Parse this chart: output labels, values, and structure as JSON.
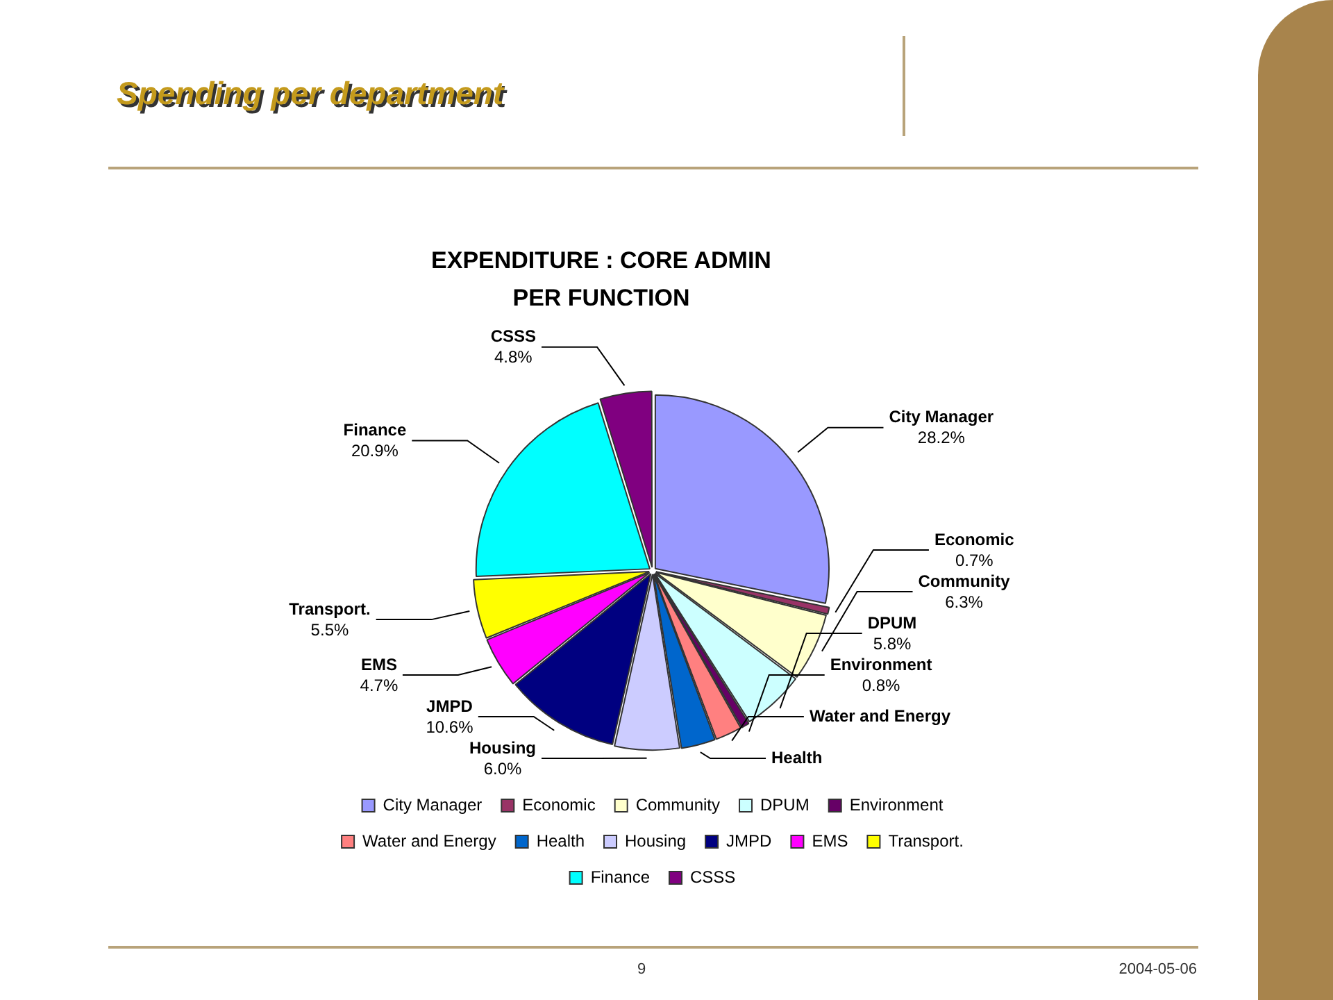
{
  "chart_data": {
    "type": "pie",
    "title": "Spending per department",
    "subtitle": "EXPENDITURE : CORE ADMIN PER FUNCTION",
    "categories": [
      "City Manager",
      "Economic",
      "Community",
      "DPUM",
      "Environment",
      "Water and Energy",
      "Health",
      "Housing",
      "JMPD",
      "EMS",
      "Transport.",
      "Finance",
      "CSSS"
    ],
    "values": [
      28.2,
      0.7,
      6.3,
      5.8,
      0.8,
      2.5,
      3.2,
      6.0,
      10.6,
      4.7,
      5.5,
      20.9,
      4.8
    ],
    "value_labels": [
      "28.2%",
      "0.7%",
      "6.3%",
      "5.8%",
      "0.8%",
      null,
      null,
      "6.0%",
      "10.6%",
      "4.7%",
      "5.5%",
      "20.9%",
      "4.8%"
    ],
    "colors": [
      "#9999ff",
      "#993366",
      "#ffffcc",
      "#ccffff",
      "#660066",
      "#ff8080",
      "#0066cc",
      "#ccccff",
      "#000080",
      "#ff00ff",
      "#ffff00",
      "#00ffff",
      "#800080"
    ],
    "legend": "bottom",
    "annotations": [
      "9",
      "2004-05-06"
    ]
  }
}
